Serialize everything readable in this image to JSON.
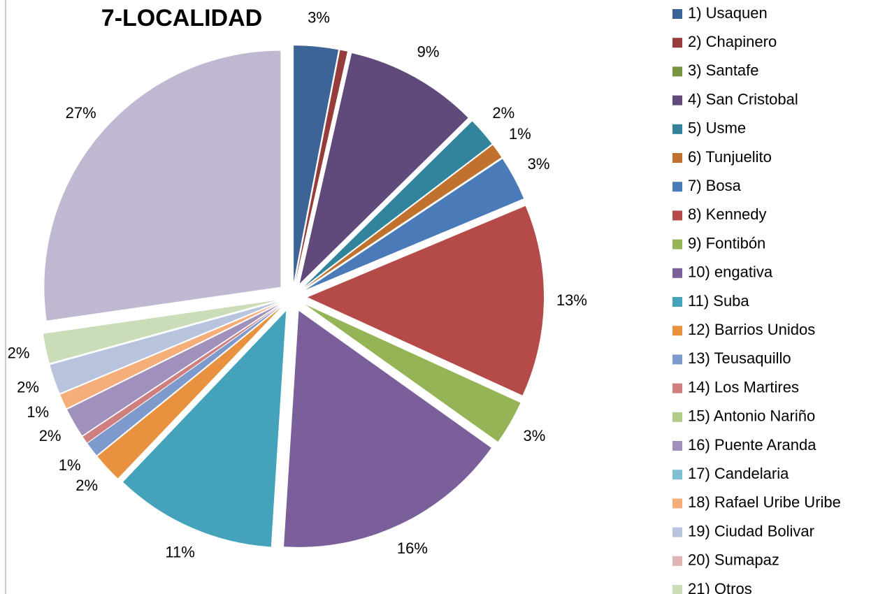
{
  "chart_data": {
    "type": "pie",
    "title": "7-LOCALIDAD",
    "categories": [
      "1) Usaquen",
      "2) Chapinero",
      "3) Santafe",
      "4) San Cristobal",
      "5) Usme",
      "6) Tunjuelito",
      "7) Bosa",
      "8) Kennedy",
      "9) Fontibón",
      "10) engativa",
      "11) Suba",
      "12) Barrios Unidos",
      "13) Teusaquillo",
      "14) Los Martires",
      "15) Antonio Nariño",
      "16) Puente Aranda",
      "17) Candelaria",
      "18) Rafael Uribe Uribe",
      "19) Ciudad Bolivar",
      "20) Sumapaz",
      "21) Otros",
      null
    ],
    "values": [
      3,
      0.5,
      0,
      9,
      2,
      1,
      3,
      13,
      3,
      16,
      11,
      2,
      1,
      0.5,
      0,
      2,
      0,
      1,
      2,
      0,
      2,
      27
    ],
    "value_labels": [
      "3%",
      null,
      null,
      "9%",
      "2%",
      "1%",
      "3%",
      "13%",
      "3%",
      "16%",
      "11%",
      "2%",
      "1%",
      null,
      null,
      "2%",
      null,
      "1%",
      "2%",
      null,
      "2%",
      "27%"
    ],
    "colors": [
      "#3c6496",
      "#963c3a",
      "#789440",
      "#604a7b",
      "#31849b",
      "#c0712e",
      "#4a7ab8",
      "#b54b48",
      "#94b456",
      "#7a5f9a",
      "#44a3ba",
      "#e8913f",
      "#7e9acc",
      "#cf7f7d",
      "#b0cc88",
      "#a090bc",
      "#7fbfd2",
      "#f5ae7a",
      "#b8c4de",
      "#e0b6b4",
      "#cadcb8",
      "#c0b8d0"
    ],
    "legend": "right"
  }
}
